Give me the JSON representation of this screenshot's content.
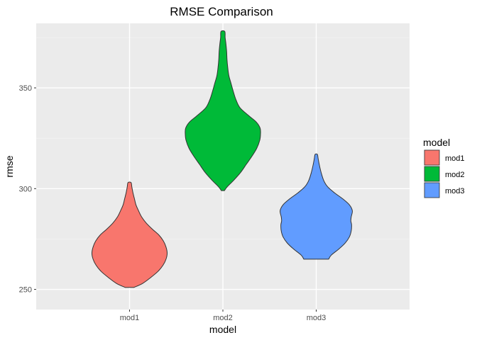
{
  "chart_data": {
    "type": "violin",
    "title": "RMSE Comparison",
    "xlabel": "model",
    "ylabel": "rmse",
    "categories": [
      "mod1",
      "mod2",
      "mod3"
    ],
    "ylim": [
      240,
      382
    ],
    "yticks": [
      250,
      300,
      350
    ],
    "grid": true,
    "legend": {
      "title": "model",
      "position": "right",
      "entries": [
        "mod1",
        "mod2",
        "mod3"
      ]
    },
    "series": [
      {
        "name": "mod1",
        "color": "#F8766D",
        "min": 251,
        "max": 303,
        "profile": [
          [
            251,
            0.12
          ],
          [
            253,
            0.35
          ],
          [
            256,
            0.57
          ],
          [
            259,
            0.76
          ],
          [
            262,
            0.89
          ],
          [
            265,
            0.97
          ],
          [
            268,
            1.0
          ],
          [
            271,
            0.97
          ],
          [
            274,
            0.9
          ],
          [
            277,
            0.78
          ],
          [
            280,
            0.6
          ],
          [
            283,
            0.44
          ],
          [
            286,
            0.32
          ],
          [
            289,
            0.24
          ],
          [
            292,
            0.17
          ],
          [
            295,
            0.13
          ],
          [
            298,
            0.09
          ],
          [
            301,
            0.06
          ],
          [
            303,
            0.04
          ]
        ]
      },
      {
        "name": "mod2",
        "color": "#00BA38",
        "min": 299,
        "max": 378,
        "profile": [
          [
            299,
            0.04
          ],
          [
            301,
            0.12
          ],
          [
            304,
            0.28
          ],
          [
            308,
            0.47
          ],
          [
            312,
            0.62
          ],
          [
            316,
            0.77
          ],
          [
            320,
            0.9
          ],
          [
            324,
            0.98
          ],
          [
            327,
            1.0
          ],
          [
            330,
            0.99
          ],
          [
            333,
            0.89
          ],
          [
            336,
            0.7
          ],
          [
            340,
            0.46
          ],
          [
            344,
            0.35
          ],
          [
            348,
            0.28
          ],
          [
            352,
            0.22
          ],
          [
            356,
            0.16
          ],
          [
            360,
            0.13
          ],
          [
            364,
            0.11
          ],
          [
            368,
            0.1
          ],
          [
            372,
            0.08
          ],
          [
            375,
            0.06
          ],
          [
            378,
            0.05
          ]
        ]
      },
      {
        "name": "mod3",
        "color": "#619CFF",
        "min": 265,
        "max": 317,
        "profile": [
          [
            265,
            0.33
          ],
          [
            267,
            0.4
          ],
          [
            270,
            0.6
          ],
          [
            273,
            0.77
          ],
          [
            276,
            0.88
          ],
          [
            279,
            0.93
          ],
          [
            282,
            0.94
          ],
          [
            284,
            0.92
          ],
          [
            286,
            0.93
          ],
          [
            289,
            0.96
          ],
          [
            292,
            0.88
          ],
          [
            295,
            0.7
          ],
          [
            298,
            0.48
          ],
          [
            301,
            0.3
          ],
          [
            304,
            0.2
          ],
          [
            308,
            0.13
          ],
          [
            312,
            0.08
          ],
          [
            315,
            0.05
          ],
          [
            317,
            0.03
          ]
        ]
      }
    ]
  }
}
